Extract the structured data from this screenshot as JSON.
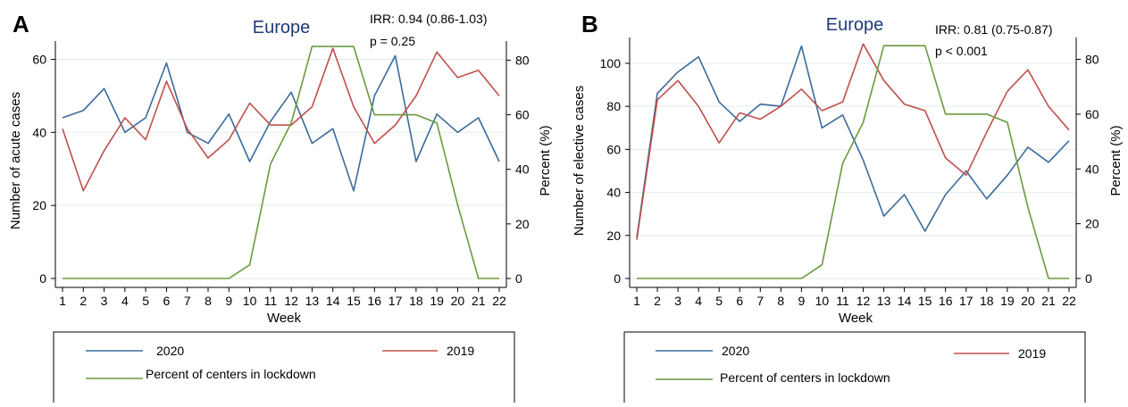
{
  "colors": {
    "series_2020": "#3a6b9c",
    "series_2019": "#c0504d",
    "series_lockdown": "#6a9a3e",
    "title": "#1f3a7a",
    "grid": "#e3eee6",
    "axis": "#000000"
  },
  "chart_data": [
    {
      "type": "line",
      "panel_label": "A",
      "title": "Europe",
      "annotation_irr": "IRR: 0.94 (0.86-1.03)",
      "annotation_p": "p = 0.25",
      "xlabel": "Week",
      "ylabel": "Number of acute cases",
      "ylabel_right": "Percent (%)",
      "x": [
        1,
        2,
        3,
        4,
        5,
        6,
        7,
        8,
        9,
        10,
        11,
        12,
        13,
        14,
        15,
        16,
        17,
        18,
        19,
        20,
        21,
        22
      ],
      "ylim": [
        0,
        65
      ],
      "yticks": [
        0,
        20,
        40,
        60
      ],
      "ylim_right": [
        0,
        87
      ],
      "yticks_right": [
        0,
        20,
        40,
        60,
        80
      ],
      "grid": true,
      "series": [
        {
          "name": "2020",
          "axis": "left",
          "color_key": "series_2020",
          "values": [
            44,
            46,
            52,
            40,
            44,
            59,
            40,
            37,
            45,
            32,
            43,
            51,
            37,
            41,
            24,
            50,
            61,
            32,
            45,
            40,
            44,
            32
          ]
        },
        {
          "name": "2019",
          "axis": "left",
          "color_key": "series_2019",
          "values": [
            41,
            24,
            35,
            44,
            38,
            54,
            41,
            33,
            38,
            48,
            42,
            42,
            47,
            63,
            47,
            37,
            42,
            50,
            62,
            55,
            57,
            50
          ]
        },
        {
          "name": "Percent of centers in lockdown",
          "axis": "right",
          "color_key": "series_lockdown",
          "values": [
            0,
            0,
            0,
            0,
            0,
            0,
            0,
            0,
            0,
            5,
            42,
            57,
            85,
            85,
            85,
            60,
            60,
            60,
            57,
            27,
            0,
            0
          ]
        }
      ],
      "legend": {
        "placement": "bottom",
        "items": [
          "2020",
          "2019",
          "Percent of centers in lockdown"
        ]
      }
    },
    {
      "type": "line",
      "panel_label": "B",
      "title": "Europe",
      "annotation_irr": "IRR: 0.81 (0.75-0.87)",
      "annotation_p": "p < 0.001",
      "xlabel": "Week",
      "ylabel": "Number of elective cases",
      "ylabel_right": "Percent (%)",
      "x": [
        1,
        2,
        3,
        4,
        5,
        6,
        7,
        8,
        9,
        10,
        11,
        12,
        13,
        14,
        15,
        16,
        17,
        18,
        19,
        20,
        21,
        22
      ],
      "ylim": [
        0,
        112
      ],
      "yticks": [
        0,
        20,
        40,
        60,
        80,
        100
      ],
      "ylim_right": [
        0,
        88
      ],
      "yticks_right": [
        0,
        20,
        40,
        60,
        80
      ],
      "grid": true,
      "series": [
        {
          "name": "2020",
          "axis": "left",
          "color_key": "series_2020",
          "values": [
            19,
            86,
            96,
            103,
            82,
            73,
            81,
            80,
            108,
            70,
            76,
            55,
            29,
            39,
            22,
            39,
            50,
            37,
            48,
            61,
            54,
            64
          ]
        },
        {
          "name": "2019",
          "axis": "left",
          "color_key": "series_2019",
          "values": [
            18,
            83,
            92,
            80,
            63,
            77,
            74,
            80,
            88,
            78,
            82,
            109,
            92,
            81,
            78,
            56,
            48,
            68,
            87,
            97,
            80,
            69
          ]
        },
        {
          "name": "Percent of centers in lockdown",
          "axis": "right",
          "color_key": "series_lockdown",
          "values": [
            0,
            0,
            0,
            0,
            0,
            0,
            0,
            0,
            0,
            5,
            42,
            57,
            85,
            85,
            85,
            60,
            60,
            60,
            57,
            26,
            0,
            0
          ]
        }
      ],
      "legend": {
        "placement": "bottom",
        "items": [
          "2020",
          "2019",
          "Percent of centers in lockdown"
        ]
      }
    }
  ]
}
